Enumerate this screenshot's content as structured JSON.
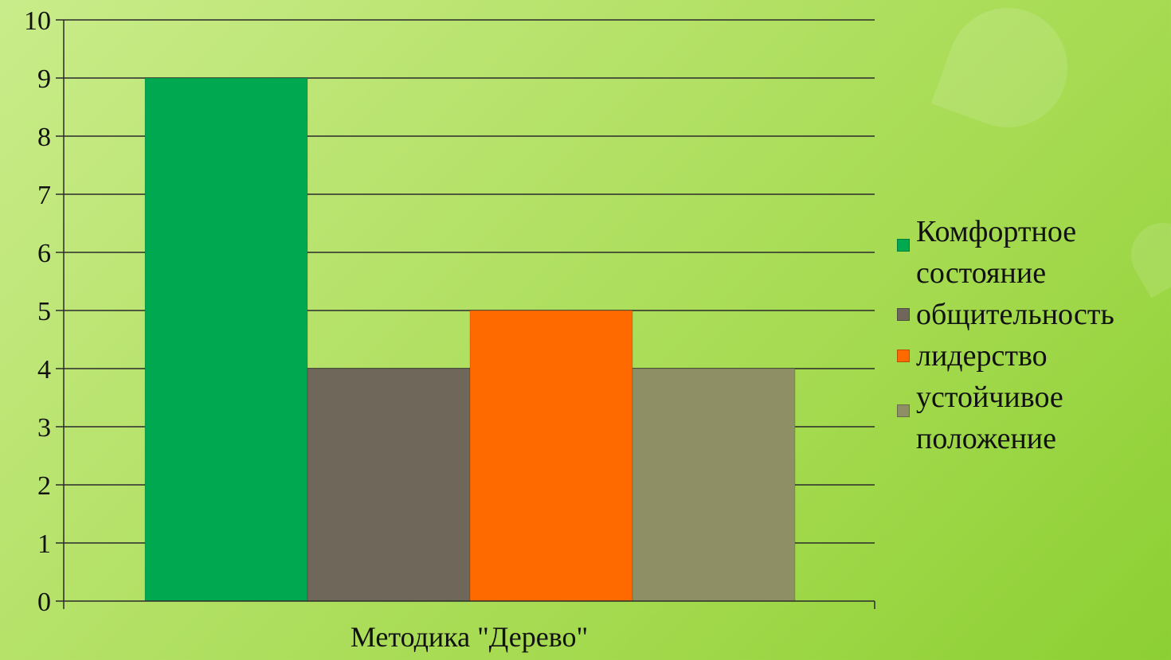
{
  "chart_data": {
    "type": "bar",
    "categories": [
      "Методика \"Дерево\""
    ],
    "series": [
      {
        "name": "Комфортное состояние",
        "values": [
          9
        ],
        "color": "#00a94f"
      },
      {
        "name": "общительность",
        "values": [
          4
        ],
        "color": "#6f675a"
      },
      {
        "name": "лидерство",
        "values": [
          5
        ],
        "color": "#ff6a00"
      },
      {
        "name": "устойчивое положение",
        "values": [
          4
        ],
        "color": "#8f8f66"
      }
    ],
    "ylim": [
      0,
      10
    ],
    "yticks": [
      "0",
      "1",
      "2",
      "3",
      "4",
      "5",
      "6",
      "7",
      "8",
      "9",
      "10"
    ],
    "grid": true,
    "legend_position": "right"
  }
}
